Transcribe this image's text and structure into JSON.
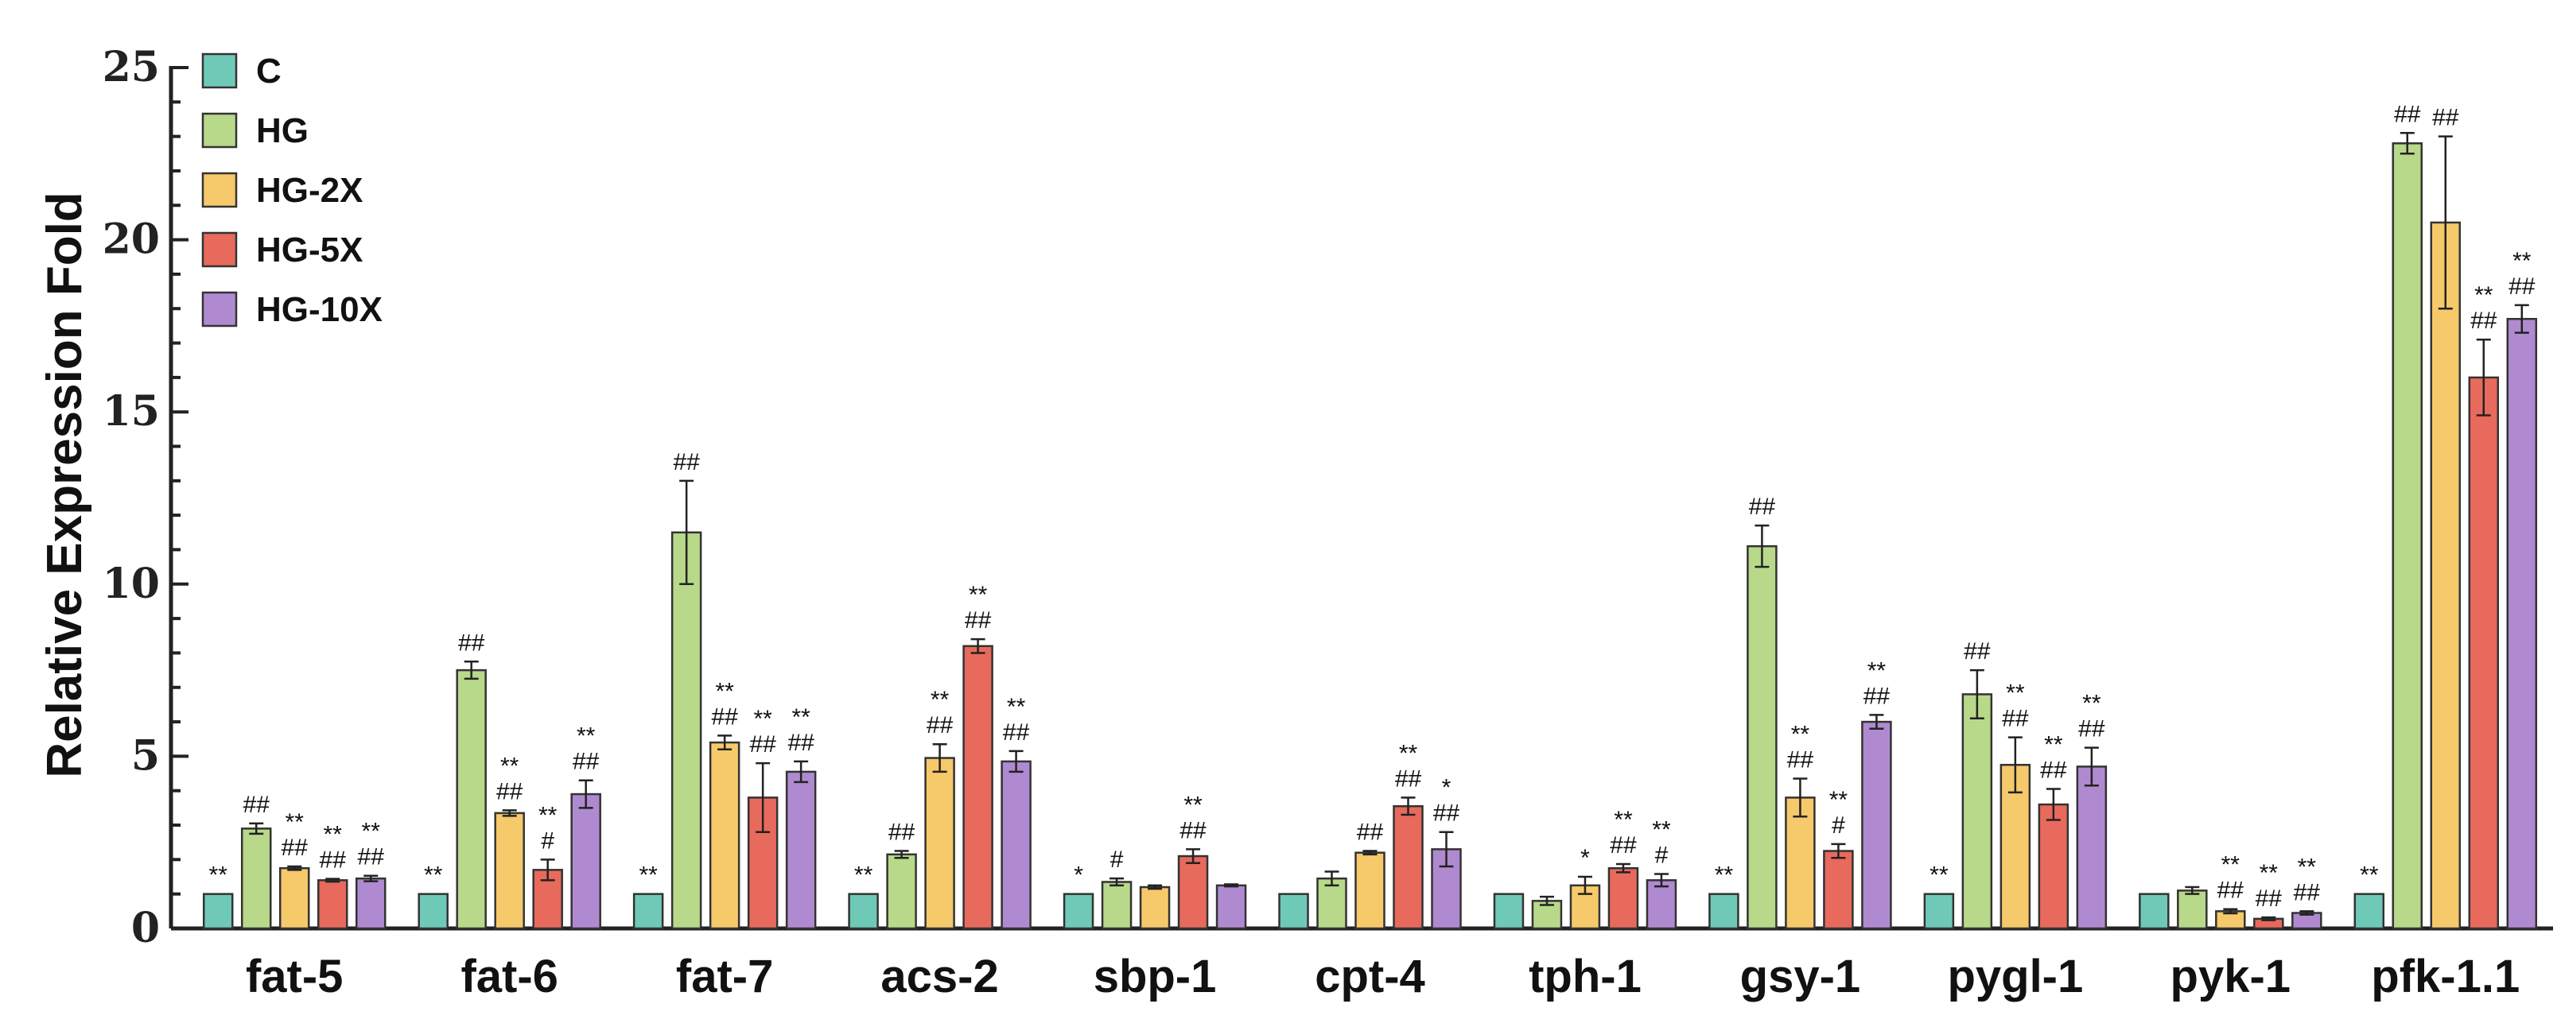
{
  "chart_data": {
    "type": "bar",
    "title": "",
    "xlabel": "",
    "ylabel": "Relative Expression Fold",
    "ylim": [
      0,
      25
    ],
    "yticks": [
      0,
      5,
      10,
      15,
      20,
      25
    ],
    "legend_position": "top-left",
    "categories": [
      "fat-5",
      "fat-6",
      "fat-7",
      "acs-2",
      "sbp-1",
      "cpt-4",
      "tph-1",
      "gsy-1",
      "pygl-1",
      "pyk-1",
      "pfk-1.1"
    ],
    "series": [
      {
        "name": "C",
        "color": "#6fc9b7",
        "values": [
          1,
          1,
          1,
          1,
          1,
          1,
          1,
          1,
          1,
          1,
          1
        ],
        "errors": [
          0,
          0,
          0,
          0,
          0,
          0,
          0,
          0,
          0,
          0,
          0
        ],
        "annotations": [
          [
            "**"
          ],
          [
            "**"
          ],
          [
            "**"
          ],
          [
            "**"
          ],
          [
            "*"
          ],
          [],
          [],
          [
            "**"
          ],
          [
            "**"
          ],
          [],
          [
            "**"
          ]
        ]
      },
      {
        "name": "HG",
        "color": "#b8d98a",
        "values": [
          2.9,
          7.5,
          11.5,
          2.15,
          1.35,
          1.45,
          0.8,
          11.1,
          6.8,
          1.1,
          22.8
        ],
        "errors": [
          0.15,
          0.25,
          1.5,
          0.1,
          0.1,
          0.2,
          0.12,
          0.6,
          0.7,
          0.1,
          0.3
        ],
        "annotations": [
          [
            "##"
          ],
          [
            "##"
          ],
          [
            "##"
          ],
          [
            "##"
          ],
          [
            "#"
          ],
          [],
          [],
          [
            "##"
          ],
          [
            "##"
          ],
          [],
          [
            "##"
          ]
        ]
      },
      {
        "name": "HG-2X",
        "color": "#f6c96a",
        "values": [
          1.75,
          3.35,
          5.4,
          4.95,
          1.2,
          2.2,
          1.25,
          3.8,
          4.75,
          0.5,
          20.5
        ],
        "errors": [
          0.05,
          0.08,
          0.2,
          0.4,
          0.05,
          0.05,
          0.25,
          0.55,
          0.8,
          0.06,
          2.5
        ],
        "annotations": [
          [
            "**",
            "##"
          ],
          [
            "**",
            "##"
          ],
          [
            "**",
            "##"
          ],
          [
            "**",
            "##"
          ],
          [],
          [
            "##"
          ],
          [
            "*"
          ],
          [
            "**",
            "##"
          ],
          [
            "**",
            "##"
          ],
          [
            "**",
            "##"
          ],
          [
            "##"
          ]
        ]
      },
      {
        "name": "HG-5X",
        "color": "#e86a5c",
        "values": [
          1.4,
          1.7,
          3.8,
          8.2,
          2.1,
          3.55,
          1.75,
          2.25,
          3.6,
          0.28,
          16.0
        ],
        "errors": [
          0.04,
          0.3,
          1.0,
          0.2,
          0.2,
          0.25,
          0.12,
          0.2,
          0.45,
          0.04,
          1.1
        ],
        "annotations": [
          [
            "**",
            "##"
          ],
          [
            "**",
            "#"
          ],
          [
            "**",
            "##"
          ],
          [
            "**",
            "##"
          ],
          [
            "**",
            "##"
          ],
          [
            "**",
            "##"
          ],
          [
            "**",
            "##"
          ],
          [
            "**",
            "#"
          ],
          [
            "**",
            "##"
          ],
          [
            "**",
            "##"
          ],
          [
            "**",
            "##"
          ]
        ]
      },
      {
        "name": "HG-10X",
        "color": "#b08ad0",
        "values": [
          1.45,
          3.9,
          4.55,
          4.85,
          1.25,
          2.3,
          1.4,
          6.0,
          4.7,
          0.45,
          17.7
        ],
        "errors": [
          0.08,
          0.4,
          0.3,
          0.3,
          0.03,
          0.5,
          0.18,
          0.2,
          0.55,
          0.05,
          0.4
        ],
        "annotations": [
          [
            "**",
            "##"
          ],
          [
            "**",
            "##"
          ],
          [
            "**",
            "##"
          ],
          [
            "**",
            "##"
          ],
          [],
          [
            "*",
            "##"
          ],
          [
            "**",
            "#"
          ],
          [
            "**",
            "##"
          ],
          [
            "**",
            "##"
          ],
          [
            "**",
            "##"
          ],
          [
            "**",
            "##"
          ]
        ]
      }
    ]
  }
}
